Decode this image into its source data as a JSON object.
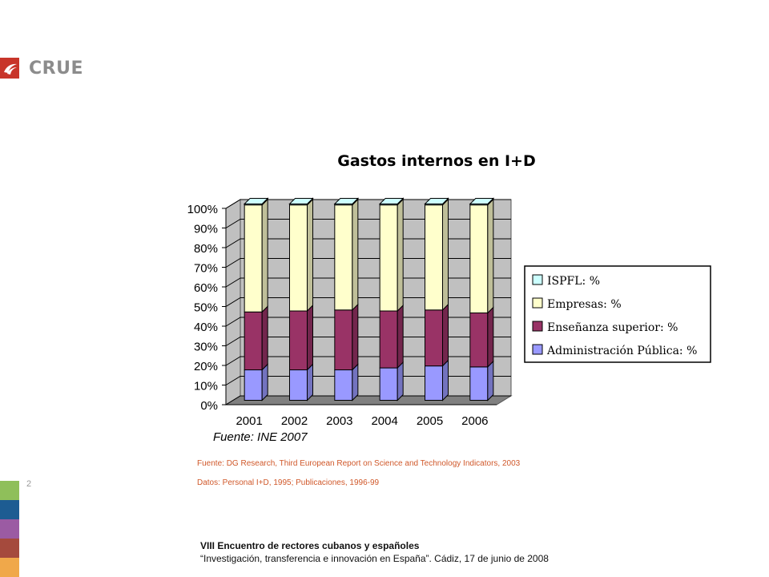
{
  "brand": {
    "name": "CRUE",
    "accent": "#c8352a"
  },
  "page_number": "2",
  "side_colors": [
    "#8fbf5a",
    "#1d5c92",
    "#9b5ba3",
    "#a54a3d",
    "#f0a84a"
  ],
  "source_notes": [
    "Fuente: DG Research, Third European Report on Science and Technology Indicators, 2003",
    "Datos: Personal I+D, 1995; Publicaciones,  1996-99"
  ],
  "footer": {
    "line1": "VIII Encuentro de rectores cubanos y españoles",
    "line2": "“Investigación, transferencia e innovación en España”. Cádiz,  17 de junio de 2008"
  },
  "chart_data": {
    "type": "bar",
    "stacked": true,
    "percent": true,
    "title": "Gastos internos en I+D",
    "source": "Fuente: INE 2007",
    "categories": [
      "2001",
      "2002",
      "2003",
      "2004",
      "2005",
      "2006"
    ],
    "y_ticks": [
      "0%",
      "10%",
      "20%",
      "30%",
      "40%",
      "50%",
      "60%",
      "70%",
      "80%",
      "90%",
      "100%"
    ],
    "ylim": [
      0,
      100
    ],
    "grid": true,
    "legend_position": "right",
    "series": [
      {
        "name": "Administración Pública: %",
        "color": "#9999ff",
        "values": [
          15.5,
          15.5,
          15.5,
          16.5,
          17.5,
          17
        ]
      },
      {
        "name": "Enseñanza superior: %",
        "color": "#993366",
        "values": [
          29.5,
          30,
          30.5,
          29,
          28.5,
          27.5
        ]
      },
      {
        "name": "Empresas: %",
        "color": "#ffffcc",
        "values": [
          54.5,
          54,
          53.5,
          54,
          53.5,
          55
        ]
      },
      {
        "name": "ISPFL: %",
        "color": "#ccffff",
        "values": [
          0.5,
          0.5,
          0.5,
          0.5,
          0.5,
          0.5
        ]
      }
    ]
  }
}
